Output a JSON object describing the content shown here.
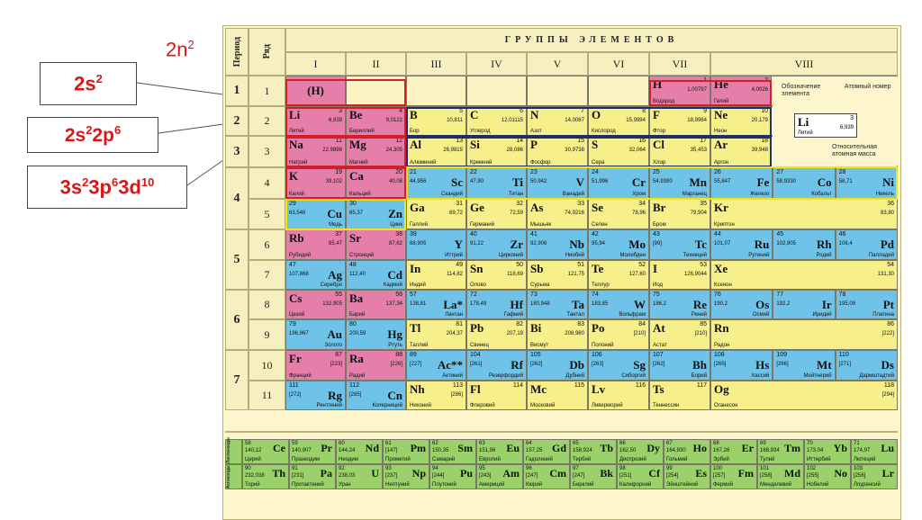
{
  "annotations": {
    "formula": "2n",
    "formula_sup": "2",
    "shell2": "2s2",
    "shell8": "2s22p6",
    "shell18": "3s23p63d10"
  },
  "table": {
    "group_title": "ГРУППЫ ЭЛЕМЕНТОВ",
    "period_header": "Период",
    "row_header": "Ряд",
    "groups": [
      "I",
      "II",
      "III",
      "IV",
      "V",
      "VI",
      "VII",
      "VIII"
    ],
    "periods": [
      "1",
      "2",
      "3",
      "4",
      "5",
      "6",
      "7"
    ],
    "rows": [
      "1",
      "2",
      "3",
      "4",
      "5",
      "6",
      "7",
      "8",
      "9",
      "10",
      "11"
    ],
    "legend": {
      "label1": "Обозначение элемента",
      "label2": "Атомный номер",
      "label3": "Относительная атомная масса",
      "sym": "Li",
      "num": "3",
      "mass": "6,939",
      "name": "Литий"
    },
    "lanth_label": "Лантаноиды",
    "actin_label": "Актиноиды"
  },
  "colors": {
    "s": "#e57fa9",
    "p": "#f7f08a",
    "d": "#6fc3e8",
    "f": "#9bd16a",
    "annot": "#d81818"
  },
  "elements": [
    {
      "c": 1,
      "r": 1,
      "t": "s",
      "sym": "(H)",
      "num": "",
      "mass": "",
      "name": "",
      "center": true
    },
    {
      "c": 7,
      "r": 1,
      "t": "s",
      "sym": "H",
      "num": "1",
      "mass": "1,00797",
      "name": "Водород"
    },
    {
      "c": 8,
      "r": 1,
      "t": "s",
      "sym": "He",
      "num": "2",
      "mass": "4,0026",
      "name": "Гелий"
    },
    {
      "c": 1,
      "r": 2,
      "t": "s",
      "sym": "Li",
      "num": "3",
      "mass": "6,939",
      "name": "Литий"
    },
    {
      "c": 2,
      "r": 2,
      "t": "s",
      "sym": "Be",
      "num": "4",
      "mass": "9,0122",
      "name": "Бериллий"
    },
    {
      "c": 3,
      "r": 2,
      "t": "p",
      "sym": "B",
      "num": "5",
      "mass": "10,811",
      "name": "Бор"
    },
    {
      "c": 4,
      "r": 2,
      "t": "p",
      "sym": "C",
      "num": "6",
      "mass": "12,01115",
      "name": "Углерод"
    },
    {
      "c": 5,
      "r": 2,
      "t": "p",
      "sym": "N",
      "num": "7",
      "mass": "14,0067",
      "name": "Азот"
    },
    {
      "c": 6,
      "r": 2,
      "t": "p",
      "sym": "O",
      "num": "8",
      "mass": "15,9994",
      "name": "Кислород"
    },
    {
      "c": 7,
      "r": 2,
      "t": "p",
      "sym": "F",
      "num": "9",
      "mass": "18,9984",
      "name": "Фтор"
    },
    {
      "c": 8,
      "r": 2,
      "t": "p",
      "sym": "Ne",
      "num": "10",
      "mass": "20,179",
      "name": "Неон"
    },
    {
      "c": 1,
      "r": 3,
      "t": "s",
      "sym": "Na",
      "num": "11",
      "mass": "22,9898",
      "name": "Натрий"
    },
    {
      "c": 2,
      "r": 3,
      "t": "s",
      "sym": "Mg",
      "num": "12",
      "mass": "24,305",
      "name": "Магний"
    },
    {
      "c": 3,
      "r": 3,
      "t": "p",
      "sym": "Al",
      "num": "13",
      "mass": "26,9815",
      "name": "Алюминий"
    },
    {
      "c": 4,
      "r": 3,
      "t": "p",
      "sym": "Si",
      "num": "14",
      "mass": "28,086",
      "name": "Кремний"
    },
    {
      "c": 5,
      "r": 3,
      "t": "p",
      "sym": "P",
      "num": "15",
      "mass": "30,9738",
      "name": "Фосфор"
    },
    {
      "c": 6,
      "r": 3,
      "t": "p",
      "sym": "S",
      "num": "16",
      "mass": "32,064",
      "name": "Сера"
    },
    {
      "c": 7,
      "r": 3,
      "t": "p",
      "sym": "Cl",
      "num": "17",
      "mass": "35,453",
      "name": "Хлор"
    },
    {
      "c": 8,
      "r": 3,
      "t": "p",
      "sym": "Ar",
      "num": "18",
      "mass": "39,948",
      "name": "Аргон"
    },
    {
      "c": 1,
      "r": 4,
      "t": "s",
      "sym": "K",
      "num": "19",
      "mass": "39,102",
      "name": "Калий"
    },
    {
      "c": 2,
      "r": 4,
      "t": "s",
      "sym": "Ca",
      "num": "20",
      "mass": "40,08",
      "name": "Кальций"
    },
    {
      "c": 3,
      "r": 4,
      "t": "d",
      "sym": "Sc",
      "num": "21",
      "mass": "44,956",
      "name": "Скандий",
      "right": true
    },
    {
      "c": 4,
      "r": 4,
      "t": "d",
      "sym": "Ti",
      "num": "22",
      "mass": "47,90",
      "name": "Титан",
      "right": true
    },
    {
      "c": 5,
      "r": 4,
      "t": "d",
      "sym": "V",
      "num": "23",
      "mass": "50,942",
      "name": "Ванадий",
      "right": true
    },
    {
      "c": 6,
      "r": 4,
      "t": "d",
      "sym": "Cr",
      "num": "24",
      "mass": "51,996",
      "name": "Хром",
      "right": true
    },
    {
      "c": 7,
      "r": 4,
      "t": "d",
      "sym": "Mn",
      "num": "25",
      "mass": "54,9380",
      "name": "Марганец",
      "right": true
    },
    {
      "c": 8,
      "r": 4,
      "t": "d",
      "sym": "Fe",
      "num": "26",
      "mass": "55,847",
      "name": "Железо",
      "right": true,
      "sub": 0
    },
    {
      "c": 8,
      "r": 4,
      "t": "d",
      "sym": "Co",
      "num": "27",
      "mass": "58,9330",
      "name": "Кобальт",
      "right": true,
      "sub": 1
    },
    {
      "c": 8,
      "r": 4,
      "t": "d",
      "sym": "Ni",
      "num": "28",
      "mass": "58,71",
      "name": "Никель",
      "right": true,
      "sub": 2
    },
    {
      "c": 1,
      "r": 5,
      "t": "d",
      "sym": "Cu",
      "num": "29",
      "mass": "63,546",
      "name": "Медь",
      "right": true
    },
    {
      "c": 2,
      "r": 5,
      "t": "d",
      "sym": "Zn",
      "num": "30",
      "mass": "65,37",
      "name": "Цинк",
      "right": true
    },
    {
      "c": 3,
      "r": 5,
      "t": "p",
      "sym": "Ga",
      "num": "31",
      "mass": "69,72",
      "name": "Галлий"
    },
    {
      "c": 4,
      "r": 5,
      "t": "p",
      "sym": "Ge",
      "num": "32",
      "mass": "72,59",
      "name": "Германий"
    },
    {
      "c": 5,
      "r": 5,
      "t": "p",
      "sym": "As",
      "num": "33",
      "mass": "74,9216",
      "name": "Мышьяк"
    },
    {
      "c": 6,
      "r": 5,
      "t": "p",
      "sym": "Se",
      "num": "34",
      "mass": "78,96",
      "name": "Селен"
    },
    {
      "c": 7,
      "r": 5,
      "t": "p",
      "sym": "Br",
      "num": "35",
      "mass": "79,904",
      "name": "Бром"
    },
    {
      "c": 8,
      "r": 5,
      "t": "p",
      "sym": "Kr",
      "num": "36",
      "mass": "83,80",
      "name": "Криптон"
    },
    {
      "c": 1,
      "r": 6,
      "t": "s",
      "sym": "Rb",
      "num": "37",
      "mass": "85,47",
      "name": "Рубидий"
    },
    {
      "c": 2,
      "r": 6,
      "t": "s",
      "sym": "Sr",
      "num": "38",
      "mass": "87,62",
      "name": "Стронций"
    },
    {
      "c": 3,
      "r": 6,
      "t": "d",
      "sym": "Y",
      "num": "39",
      "mass": "88,905",
      "name": "Иттрий",
      "right": true
    },
    {
      "c": 4,
      "r": 6,
      "t": "d",
      "sym": "Zr",
      "num": "40",
      "mass": "91,22",
      "name": "Цирконий",
      "right": true
    },
    {
      "c": 5,
      "r": 6,
      "t": "d",
      "sym": "Nb",
      "num": "41",
      "mass": "92,906",
      "name": "Ниобий",
      "right": true
    },
    {
      "c": 6,
      "r": 6,
      "t": "d",
      "sym": "Mo",
      "num": "42",
      "mass": "95,94",
      "name": "Молибден",
      "right": true
    },
    {
      "c": 7,
      "r": 6,
      "t": "d",
      "sym": "Tc",
      "num": "43",
      "mass": "[99]",
      "name": "Технеций",
      "right": true
    },
    {
      "c": 8,
      "r": 6,
      "t": "d",
      "sym": "Ru",
      "num": "44",
      "mass": "101,07",
      "name": "Рутений",
      "right": true,
      "sub": 0
    },
    {
      "c": 8,
      "r": 6,
      "t": "d",
      "sym": "Rh",
      "num": "45",
      "mass": "102,905",
      "name": "Родий",
      "right": true,
      "sub": 1
    },
    {
      "c": 8,
      "r": 6,
      "t": "d",
      "sym": "Pd",
      "num": "46",
      "mass": "106,4",
      "name": "Палладий",
      "right": true,
      "sub": 2
    },
    {
      "c": 1,
      "r": 7,
      "t": "d",
      "sym": "Ag",
      "num": "47",
      "mass": "107,868",
      "name": "Серебро",
      "right": true
    },
    {
      "c": 2,
      "r": 7,
      "t": "d",
      "sym": "Cd",
      "num": "48",
      "mass": "112,40",
      "name": "Кадмий",
      "right": true
    },
    {
      "c": 3,
      "r": 7,
      "t": "p",
      "sym": "In",
      "num": "49",
      "mass": "114,82",
      "name": "Индий"
    },
    {
      "c": 4,
      "r": 7,
      "t": "p",
      "sym": "Sn",
      "num": "50",
      "mass": "118,69",
      "name": "Олово"
    },
    {
      "c": 5,
      "r": 7,
      "t": "p",
      "sym": "Sb",
      "num": "51",
      "mass": "121,75",
      "name": "Сурьма"
    },
    {
      "c": 6,
      "r": 7,
      "t": "p",
      "sym": "Te",
      "num": "52",
      "mass": "127,60",
      "name": "Теллур"
    },
    {
      "c": 7,
      "r": 7,
      "t": "p",
      "sym": "I",
      "num": "53",
      "mass": "126,9044",
      "name": "Иод"
    },
    {
      "c": 8,
      "r": 7,
      "t": "p",
      "sym": "Xe",
      "num": "54",
      "mass": "131,30",
      "name": "Ксенон"
    },
    {
      "c": 1,
      "r": 8,
      "t": "s",
      "sym": "Cs",
      "num": "55",
      "mass": "132,905",
      "name": "Цезий"
    },
    {
      "c": 2,
      "r": 8,
      "t": "s",
      "sym": "Ba",
      "num": "56",
      "mass": "137,34",
      "name": "Барий"
    },
    {
      "c": 3,
      "r": 8,
      "t": "d",
      "sym": "La*",
      "num": "57",
      "mass": "138,81",
      "name": "Лантан",
      "right": true
    },
    {
      "c": 4,
      "r": 8,
      "t": "d",
      "sym": "Hf",
      "num": "72",
      "mass": "178,49",
      "name": "Гафний",
      "right": true
    },
    {
      "c": 5,
      "r": 8,
      "t": "d",
      "sym": "Ta",
      "num": "73",
      "mass": "180,948",
      "name": "Тантал",
      "right": true
    },
    {
      "c": 6,
      "r": 8,
      "t": "d",
      "sym": "W",
      "num": "74",
      "mass": "183,85",
      "name": "Вольфрам",
      "right": true
    },
    {
      "c": 7,
      "r": 8,
      "t": "d",
      "sym": "Re",
      "num": "75",
      "mass": "186,2",
      "name": "Рений",
      "right": true
    },
    {
      "c": 8,
      "r": 8,
      "t": "d",
      "sym": "Os",
      "num": "76",
      "mass": "190,2",
      "name": "Осмий",
      "right": true,
      "sub": 0
    },
    {
      "c": 8,
      "r": 8,
      "t": "d",
      "sym": "Ir",
      "num": "77",
      "mass": "192,2",
      "name": "Иридий",
      "right": true,
      "sub": 1
    },
    {
      "c": 8,
      "r": 8,
      "t": "d",
      "sym": "Pt",
      "num": "78",
      "mass": "195,09",
      "name": "Платина",
      "right": true,
      "sub": 2
    },
    {
      "c": 1,
      "r": 9,
      "t": "d",
      "sym": "Au",
      "num": "79",
      "mass": "196,967",
      "name": "Золото",
      "right": true
    },
    {
      "c": 2,
      "r": 9,
      "t": "d",
      "sym": "Hg",
      "num": "80",
      "mass": "200,59",
      "name": "Ртуть",
      "right": true
    },
    {
      "c": 3,
      "r": 9,
      "t": "p",
      "sym": "Tl",
      "num": "81",
      "mass": "204,37",
      "name": "Таллий"
    },
    {
      "c": 4,
      "r": 9,
      "t": "p",
      "sym": "Pb",
      "num": "82",
      "mass": "207,19",
      "name": "Свинец"
    },
    {
      "c": 5,
      "r": 9,
      "t": "p",
      "sym": "Bi",
      "num": "83",
      "mass": "208,980",
      "name": "Висмут"
    },
    {
      "c": 6,
      "r": 9,
      "t": "p",
      "sym": "Po",
      "num": "84",
      "mass": "[210]",
      "name": "Полоний"
    },
    {
      "c": 7,
      "r": 9,
      "t": "p",
      "sym": "At",
      "num": "85",
      "mass": "[210]",
      "name": "Астат"
    },
    {
      "c": 8,
      "r": 9,
      "t": "p",
      "sym": "Rn",
      "num": "86",
      "mass": "[222]",
      "name": "Радон"
    },
    {
      "c": 1,
      "r": 10,
      "t": "s",
      "sym": "Fr",
      "num": "87",
      "mass": "[223]",
      "name": "Франций"
    },
    {
      "c": 2,
      "r": 10,
      "t": "s",
      "sym": "Ra",
      "num": "88",
      "mass": "[226]",
      "name": "Радий"
    },
    {
      "c": 3,
      "r": 10,
      "t": "d",
      "sym": "Ac**",
      "num": "89",
      "mass": "[227]",
      "name": "Актиний",
      "right": true
    },
    {
      "c": 4,
      "r": 10,
      "t": "d",
      "sym": "Rf",
      "num": "104",
      "mass": "[261]",
      "name": "Резерфордий",
      "right": true
    },
    {
      "c": 5,
      "r": 10,
      "t": "d",
      "sym": "Db",
      "num": "105",
      "mass": "[262]",
      "name": "Дубний",
      "right": true
    },
    {
      "c": 6,
      "r": 10,
      "t": "d",
      "sym": "Sg",
      "num": "106",
      "mass": "[263]",
      "name": "Сиборгий",
      "right": true
    },
    {
      "c": 7,
      "r": 10,
      "t": "d",
      "sym": "Bh",
      "num": "107",
      "mass": "[262]",
      "name": "Борий",
      "right": true
    },
    {
      "c": 8,
      "r": 10,
      "t": "d",
      "sym": "Hs",
      "num": "108",
      "mass": "[265]",
      "name": "Хассий",
      "right": true,
      "sub": 0
    },
    {
      "c": 8,
      "r": 10,
      "t": "d",
      "sym": "Mt",
      "num": "109",
      "mass": "[266]",
      "name": "Мейтнерий",
      "right": true,
      "sub": 1
    },
    {
      "c": 8,
      "r": 10,
      "t": "d",
      "sym": "Ds",
      "num": "110",
      "mass": "[271]",
      "name": "Дармштадтий",
      "right": true,
      "sub": 2
    },
    {
      "c": 1,
      "r": 11,
      "t": "d",
      "sym": "Rg",
      "num": "111",
      "mass": "[272]",
      "name": "Рентгений",
      "right": true
    },
    {
      "c": 2,
      "r": 11,
      "t": "d",
      "sym": "Cn",
      "num": "112",
      "mass": "[285]",
      "name": "Коперниций",
      "right": true
    },
    {
      "c": 3,
      "r": 11,
      "t": "p",
      "sym": "Nh",
      "num": "113",
      "mass": "[286]",
      "name": "Нихоний"
    },
    {
      "c": 4,
      "r": 11,
      "t": "p",
      "sym": "Fl",
      "num": "114",
      "mass": "",
      "name": "Флеровий"
    },
    {
      "c": 5,
      "r": 11,
      "t": "p",
      "sym": "Mc",
      "num": "115",
      "mass": "",
      "name": "Московий"
    },
    {
      "c": 6,
      "r": 11,
      "t": "p",
      "sym": "Lv",
      "num": "116",
      "mass": "",
      "name": "Ливерморий"
    },
    {
      "c": 7,
      "r": 11,
      "t": "p",
      "sym": "Ts",
      "num": "117",
      "mass": "",
      "name": "Теннессин"
    },
    {
      "c": 8,
      "r": 11,
      "t": "p",
      "sym": "Og",
      "num": "118",
      "mass": "[294]",
      "name": "Оганесон"
    }
  ],
  "lanthanides": [
    {
      "sym": "Ce",
      "num": "58",
      "mass": "140,12",
      "name": "Церий"
    },
    {
      "sym": "Pr",
      "num": "59",
      "mass": "140,907",
      "name": "Празеодим"
    },
    {
      "sym": "Nd",
      "num": "60",
      "mass": "144,24",
      "name": "Неодим"
    },
    {
      "sym": "Pm",
      "num": "61",
      "mass": "[147]",
      "name": "Прометий"
    },
    {
      "sym": "Sm",
      "num": "62",
      "mass": "150,35",
      "name": "Самарий"
    },
    {
      "sym": "Eu",
      "num": "63",
      "mass": "151,96",
      "name": "Европий"
    },
    {
      "sym": "Gd",
      "num": "64",
      "mass": "157,25",
      "name": "Гадолиний"
    },
    {
      "sym": "Tb",
      "num": "65",
      "mass": "158,924",
      "name": "Тербий"
    },
    {
      "sym": "Dy",
      "num": "66",
      "mass": "162,50",
      "name": "Диспрозий"
    },
    {
      "sym": "Ho",
      "num": "67",
      "mass": "164,930",
      "name": "Гольмий"
    },
    {
      "sym": "Er",
      "num": "68",
      "mass": "167,26",
      "name": "Эрбий"
    },
    {
      "sym": "Tm",
      "num": "69",
      "mass": "168,934",
      "name": "Тулий"
    },
    {
      "sym": "Yb",
      "num": "70",
      "mass": "173,04",
      "name": "Иттербий"
    },
    {
      "sym": "Lu",
      "num": "71",
      "mass": "174,97",
      "name": "Лютеций"
    }
  ],
  "actinides": [
    {
      "sym": "Th",
      "num": "90",
      "mass": "232,038",
      "name": "Торий"
    },
    {
      "sym": "Pa",
      "num": "91",
      "mass": "[231]",
      "name": "Протактиний"
    },
    {
      "sym": "U",
      "num": "92",
      "mass": "238,03",
      "name": "Уран"
    },
    {
      "sym": "Np",
      "num": "93",
      "mass": "[237]",
      "name": "Нептуний"
    },
    {
      "sym": "Pu",
      "num": "94",
      "mass": "[244]",
      "name": "Плутоний"
    },
    {
      "sym": "Am",
      "num": "95",
      "mass": "[243]",
      "name": "Америций"
    },
    {
      "sym": "Cm",
      "num": "96",
      "mass": "[247]",
      "name": "Кюрий"
    },
    {
      "sym": "Bk",
      "num": "97",
      "mass": "[247]",
      "name": "Берклий"
    },
    {
      "sym": "Cf",
      "num": "98",
      "mass": "[251]",
      "name": "Калифорний"
    },
    {
      "sym": "Es",
      "num": "99",
      "mass": "[254]",
      "name": "Эйнштейний"
    },
    {
      "sym": "Fm",
      "num": "100",
      "mass": "[257]",
      "name": "Фермий"
    },
    {
      "sym": "Md",
      "num": "101",
      "mass": "[258]",
      "name": "Менделевий"
    },
    {
      "sym": "No",
      "num": "102",
      "mass": "[255]",
      "name": "Нобелий"
    },
    {
      "sym": "Lr",
      "num": "103",
      "mass": "[256]",
      "name": "Лоуренсий"
    }
  ]
}
